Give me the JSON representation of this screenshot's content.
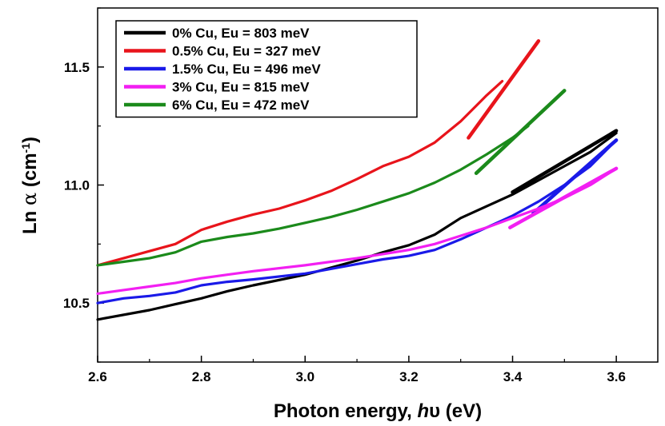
{
  "chart_data": {
    "type": "line",
    "title": "",
    "xlabel_parts": [
      "Photon energy, ",
      "h",
      "υ",
      " (eV)"
    ],
    "ylabel_parts": [
      "Ln ",
      "α",
      " (cm",
      "-1",
      ")"
    ],
    "xlim": [
      2.6,
      3.68
    ],
    "ylim": [
      10.25,
      11.75
    ],
    "xticks": [
      2.6,
      2.8,
      3.0,
      3.2,
      3.4,
      3.6
    ],
    "xtick_labels": [
      "2.6",
      "2.8",
      "3.0",
      "3.2",
      "3.4",
      "3.6"
    ],
    "yticks": [
      10.5,
      11.0,
      11.5
    ],
    "ytick_labels": [
      "10.5",
      "11.0",
      "11.5"
    ],
    "legend_position": "top-left",
    "series": [
      {
        "name": "0% Cu,  Eu = 803 meV",
        "color": "#000000",
        "x": [
          2.6,
          2.7,
          2.75,
          2.8,
          2.85,
          2.9,
          3.0,
          3.1,
          3.15,
          3.2,
          3.25,
          3.3,
          3.35,
          3.4,
          3.45,
          3.5,
          3.55,
          3.6
        ],
        "y": [
          10.43,
          10.47,
          10.495,
          10.52,
          10.55,
          10.575,
          10.62,
          10.68,
          10.715,
          10.745,
          10.79,
          10.86,
          10.91,
          10.96,
          11.02,
          11.08,
          11.14,
          11.22
        ],
        "fit": {
          "x": [
            3.4,
            3.6
          ],
          "y": [
            10.97,
            11.23
          ]
        }
      },
      {
        "name": "0.5% Cu, Eu = 327 meV",
        "color": "#e8141b",
        "x": [
          2.6,
          2.65,
          2.7,
          2.75,
          2.8,
          2.85,
          2.9,
          2.95,
          3.0,
          3.05,
          3.1,
          3.15,
          3.2,
          3.25,
          3.3,
          3.35,
          3.38
        ],
        "y": [
          10.66,
          10.69,
          10.72,
          10.75,
          10.81,
          10.845,
          10.875,
          10.9,
          10.935,
          10.975,
          11.025,
          11.08,
          11.12,
          11.18,
          11.27,
          11.38,
          11.44
        ],
        "fit": {
          "x": [
            3.315,
            3.45
          ],
          "y": [
            11.2,
            11.61
          ]
        }
      },
      {
        "name": "1.5% Cu, Eu = 496 meV",
        "color": "#1a1ae8",
        "x": [
          2.6,
          2.65,
          2.7,
          2.75,
          2.8,
          2.85,
          2.9,
          3.0,
          3.1,
          3.15,
          3.2,
          3.25,
          3.3,
          3.35,
          3.4,
          3.45,
          3.5,
          3.55,
          3.6
        ],
        "y": [
          10.5,
          10.52,
          10.53,
          10.545,
          10.575,
          10.59,
          10.6,
          10.625,
          10.665,
          10.685,
          10.7,
          10.725,
          10.77,
          10.82,
          10.87,
          10.93,
          11.0,
          11.08,
          11.19
        ],
        "fit": {
          "x": [
            3.44,
            3.6
          ],
          "y": [
            10.88,
            11.19
          ]
        }
      },
      {
        "name": "3% Cu,  Eu = 815 meV",
        "color": "#f21ff2",
        "x": [
          2.6,
          2.65,
          2.7,
          2.75,
          2.8,
          2.85,
          2.9,
          3.0,
          3.1,
          3.2,
          3.25,
          3.3,
          3.35,
          3.4,
          3.45,
          3.5,
          3.55,
          3.6
        ],
        "y": [
          10.54,
          10.555,
          10.57,
          10.585,
          10.605,
          10.62,
          10.635,
          10.66,
          10.69,
          10.725,
          10.75,
          10.785,
          10.82,
          10.86,
          10.9,
          10.945,
          11.0,
          11.07
        ],
        "fit": {
          "x": [
            3.395,
            3.6
          ],
          "y": [
            10.82,
            11.07
          ]
        }
      },
      {
        "name": "6% Cu,  Eu = 472 meV",
        "color": "#1b8a1b",
        "x": [
          2.6,
          2.65,
          2.7,
          2.75,
          2.8,
          2.85,
          2.9,
          2.95,
          3.0,
          3.05,
          3.1,
          3.15,
          3.2,
          3.25,
          3.3,
          3.35,
          3.4,
          3.43
        ],
        "y": [
          10.66,
          10.675,
          10.69,
          10.715,
          10.76,
          10.78,
          10.795,
          10.815,
          10.84,
          10.865,
          10.895,
          10.93,
          10.965,
          11.01,
          11.065,
          11.13,
          11.2,
          11.25
        ],
        "fit": {
          "x": [
            3.33,
            3.5
          ],
          "y": [
            11.05,
            11.4
          ]
        }
      }
    ]
  }
}
